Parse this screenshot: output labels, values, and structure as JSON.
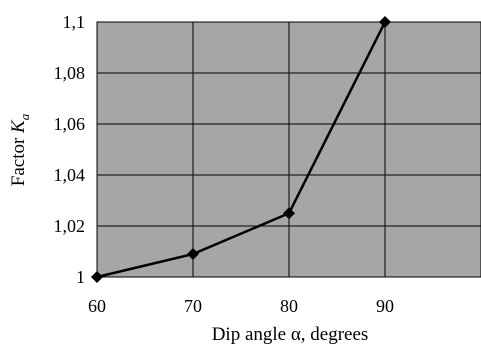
{
  "chart_data": {
    "type": "line",
    "title": "",
    "xlabel": "Dip angle α, degrees",
    "ylabel": {
      "prefix": "Factor ",
      "symbol": "K",
      "subscript": "a"
    },
    "x": [
      60,
      70,
      80,
      90
    ],
    "series": [
      {
        "values": [
          1.0,
          1.009,
          1.025,
          1.1
        ]
      }
    ],
    "xlim": [
      60,
      100
    ],
    "ylim": [
      1.0,
      1.1
    ],
    "x_ticks": [
      60,
      70,
      80,
      90
    ],
    "x_tick_labels": [
      "60",
      "70",
      "80",
      "90"
    ],
    "y_ticks": [
      1.0,
      1.02,
      1.04,
      1.06,
      1.08,
      1.1
    ],
    "y_tick_labels": [
      "1",
      "1,02",
      "1,04",
      "1,06",
      "1,08",
      "1,1"
    ],
    "grid": true,
    "legend": "none",
    "colors": {
      "plot_background": "#a6a6a6",
      "grid": "#000000",
      "line": "#000000",
      "marker": "#000000"
    },
    "marker": "diamond"
  }
}
